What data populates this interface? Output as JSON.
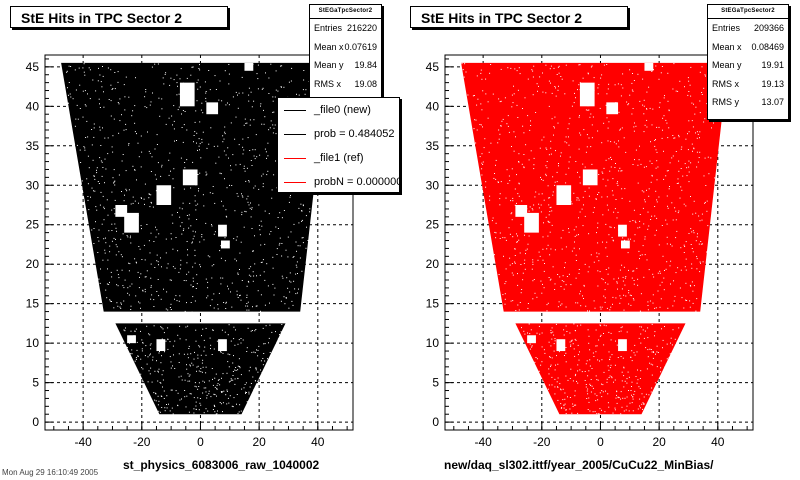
{
  "chart_data": [
    {
      "type": "scatter",
      "title": "StE Hits in TPC Sector 2",
      "xlabel": "st_physics_6083006_raw_1040002",
      "ylabel": "",
      "xlim": [
        -53,
        52
      ],
      "ylim": [
        -1,
        46.5
      ],
      "xticks": [
        -40,
        -20,
        0,
        20,
        40
      ],
      "yticks": [
        0,
        5,
        10,
        15,
        20,
        25,
        30,
        35,
        40,
        45
      ],
      "grid": true,
      "color": "#000000",
      "stats": {
        "name": "StEGaTpcSector2",
        "rows": [
          {
            "label": "Entries",
            "value": "216220"
          },
          {
            "label": "Mean x",
            "value": "0.07619"
          },
          {
            "label": "Mean y",
            "value": "19.84"
          },
          {
            "label": "RMS x",
            "value": "19.08"
          }
        ]
      },
      "legend": {
        "placement": "right",
        "entries": [
          {
            "label": "_file0 (new)",
            "color": "#000000"
          },
          {
            "label": "prob = 0.484052",
            "color": "#000000"
          },
          {
            "label": "_file1 (ref)",
            "color": "#ff0000"
          },
          {
            "label": "probN = 0.000000",
            "color": "#ff0000"
          }
        ]
      }
    },
    {
      "type": "scatter",
      "title": "StE Hits in TPC Sector 2",
      "xlabel": "new/daq_sl302.ittf/year_2005/CuCu22_MinBias/",
      "ylabel": "",
      "xlim": [
        -53,
        52
      ],
      "ylim": [
        -1,
        46.5
      ],
      "xticks": [
        -40,
        -20,
        0,
        20,
        40
      ],
      "yticks": [
        0,
        5,
        10,
        15,
        20,
        25,
        30,
        35,
        40,
        45
      ],
      "grid": true,
      "color": "#ff0000",
      "stats": {
        "name": "StEGaTpcSector2",
        "rows": [
          {
            "label": "Entries",
            "value": "209366"
          },
          {
            "label": "Mean x",
            "value": "0.08469"
          },
          {
            "label": "Mean y",
            "value": "19.91"
          },
          {
            "label": "RMS x",
            "value": "19.13"
          },
          {
            "label": "RMS y",
            "value": "13.07"
          }
        ]
      }
    }
  ],
  "footer_text": "Mon Aug 29 16:10:49 2005"
}
